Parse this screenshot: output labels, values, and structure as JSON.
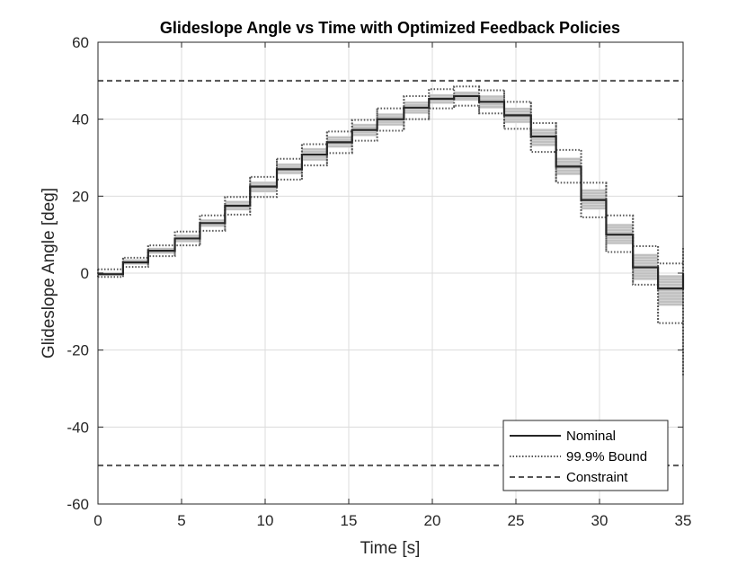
{
  "chart_data": {
    "type": "line",
    "title": "Glideslope Angle vs Time with Optimized Feedback Policies",
    "xlabel": "Time [s]",
    "ylabel": "Glideslope Angle [deg]",
    "xlim": [
      0,
      35
    ],
    "ylim": [
      -60,
      60
    ],
    "xticks": [
      0,
      5,
      10,
      15,
      20,
      25,
      30,
      35
    ],
    "yticks": [
      -60,
      -40,
      -20,
      0,
      20,
      40,
      60
    ],
    "grid": true,
    "legend_position": "bottom-right",
    "step_edges": [
      0,
      1.5,
      3.0,
      4.6,
      6.1,
      7.6,
      9.1,
      10.7,
      12.2,
      13.7,
      15.2,
      16.7,
      18.3,
      19.8,
      21.3,
      22.8,
      24.3,
      25.9,
      27.4,
      28.9,
      30.4,
      32.0,
      33.5,
      35.0
    ],
    "series": [
      {
        "name": "Nominal",
        "style": "solid",
        "color": "#262626",
        "values": [
          -0.3,
          2.8,
          5.8,
          9.0,
          13.0,
          17.5,
          22.5,
          27.0,
          30.8,
          34.0,
          37.2,
          40.0,
          43.0,
          45.3,
          46.0,
          44.5,
          41.0,
          35.5,
          27.7,
          19.0,
          10.0,
          1.5,
          -4.0,
          -8.0
        ]
      },
      {
        "name": "99.9% Bound",
        "style": "dotted",
        "color": "#555555",
        "upper": [
          1.0,
          4.0,
          7.2,
          10.8,
          15.0,
          19.8,
          25.0,
          29.7,
          33.5,
          36.8,
          39.8,
          42.8,
          46.0,
          47.8,
          48.5,
          47.5,
          44.5,
          39.0,
          32.0,
          23.5,
          15.0,
          7.0,
          2.5,
          6.5
        ],
        "lower": [
          -1.0,
          1.6,
          4.4,
          7.2,
          11.0,
          15.2,
          19.8,
          24.3,
          28.0,
          31.2,
          34.4,
          37.0,
          40.0,
          42.8,
          43.5,
          41.5,
          37.5,
          31.5,
          23.5,
          14.5,
          5.5,
          -3.0,
          -13.0,
          -27.0
        ]
      },
      {
        "name": "Constraint",
        "style": "dashed",
        "color": "#555555",
        "values": [
          50,
          -50
        ]
      }
    ],
    "samples_band": {
      "color": "#c0c0c0",
      "upper": [
        0.3,
        3.6,
        6.6,
        10.0,
        14.0,
        18.8,
        23.8,
        28.5,
        32.5,
        35.6,
        38.8,
        41.5,
        44.6,
        46.5,
        47.2,
        46.2,
        43.0,
        37.5,
        30.0,
        21.8,
        12.8,
        5.0,
        -0.5,
        3.0
      ],
      "lower": [
        -0.6,
        2.2,
        5.0,
        8.0,
        12.0,
        16.3,
        21.0,
        25.7,
        29.2,
        32.6,
        35.6,
        38.3,
        41.4,
        44.0,
        44.8,
        42.8,
        39.0,
        33.0,
        25.5,
        16.5,
        7.5,
        -1.8,
        -8.5,
        -20.0
      ]
    }
  }
}
